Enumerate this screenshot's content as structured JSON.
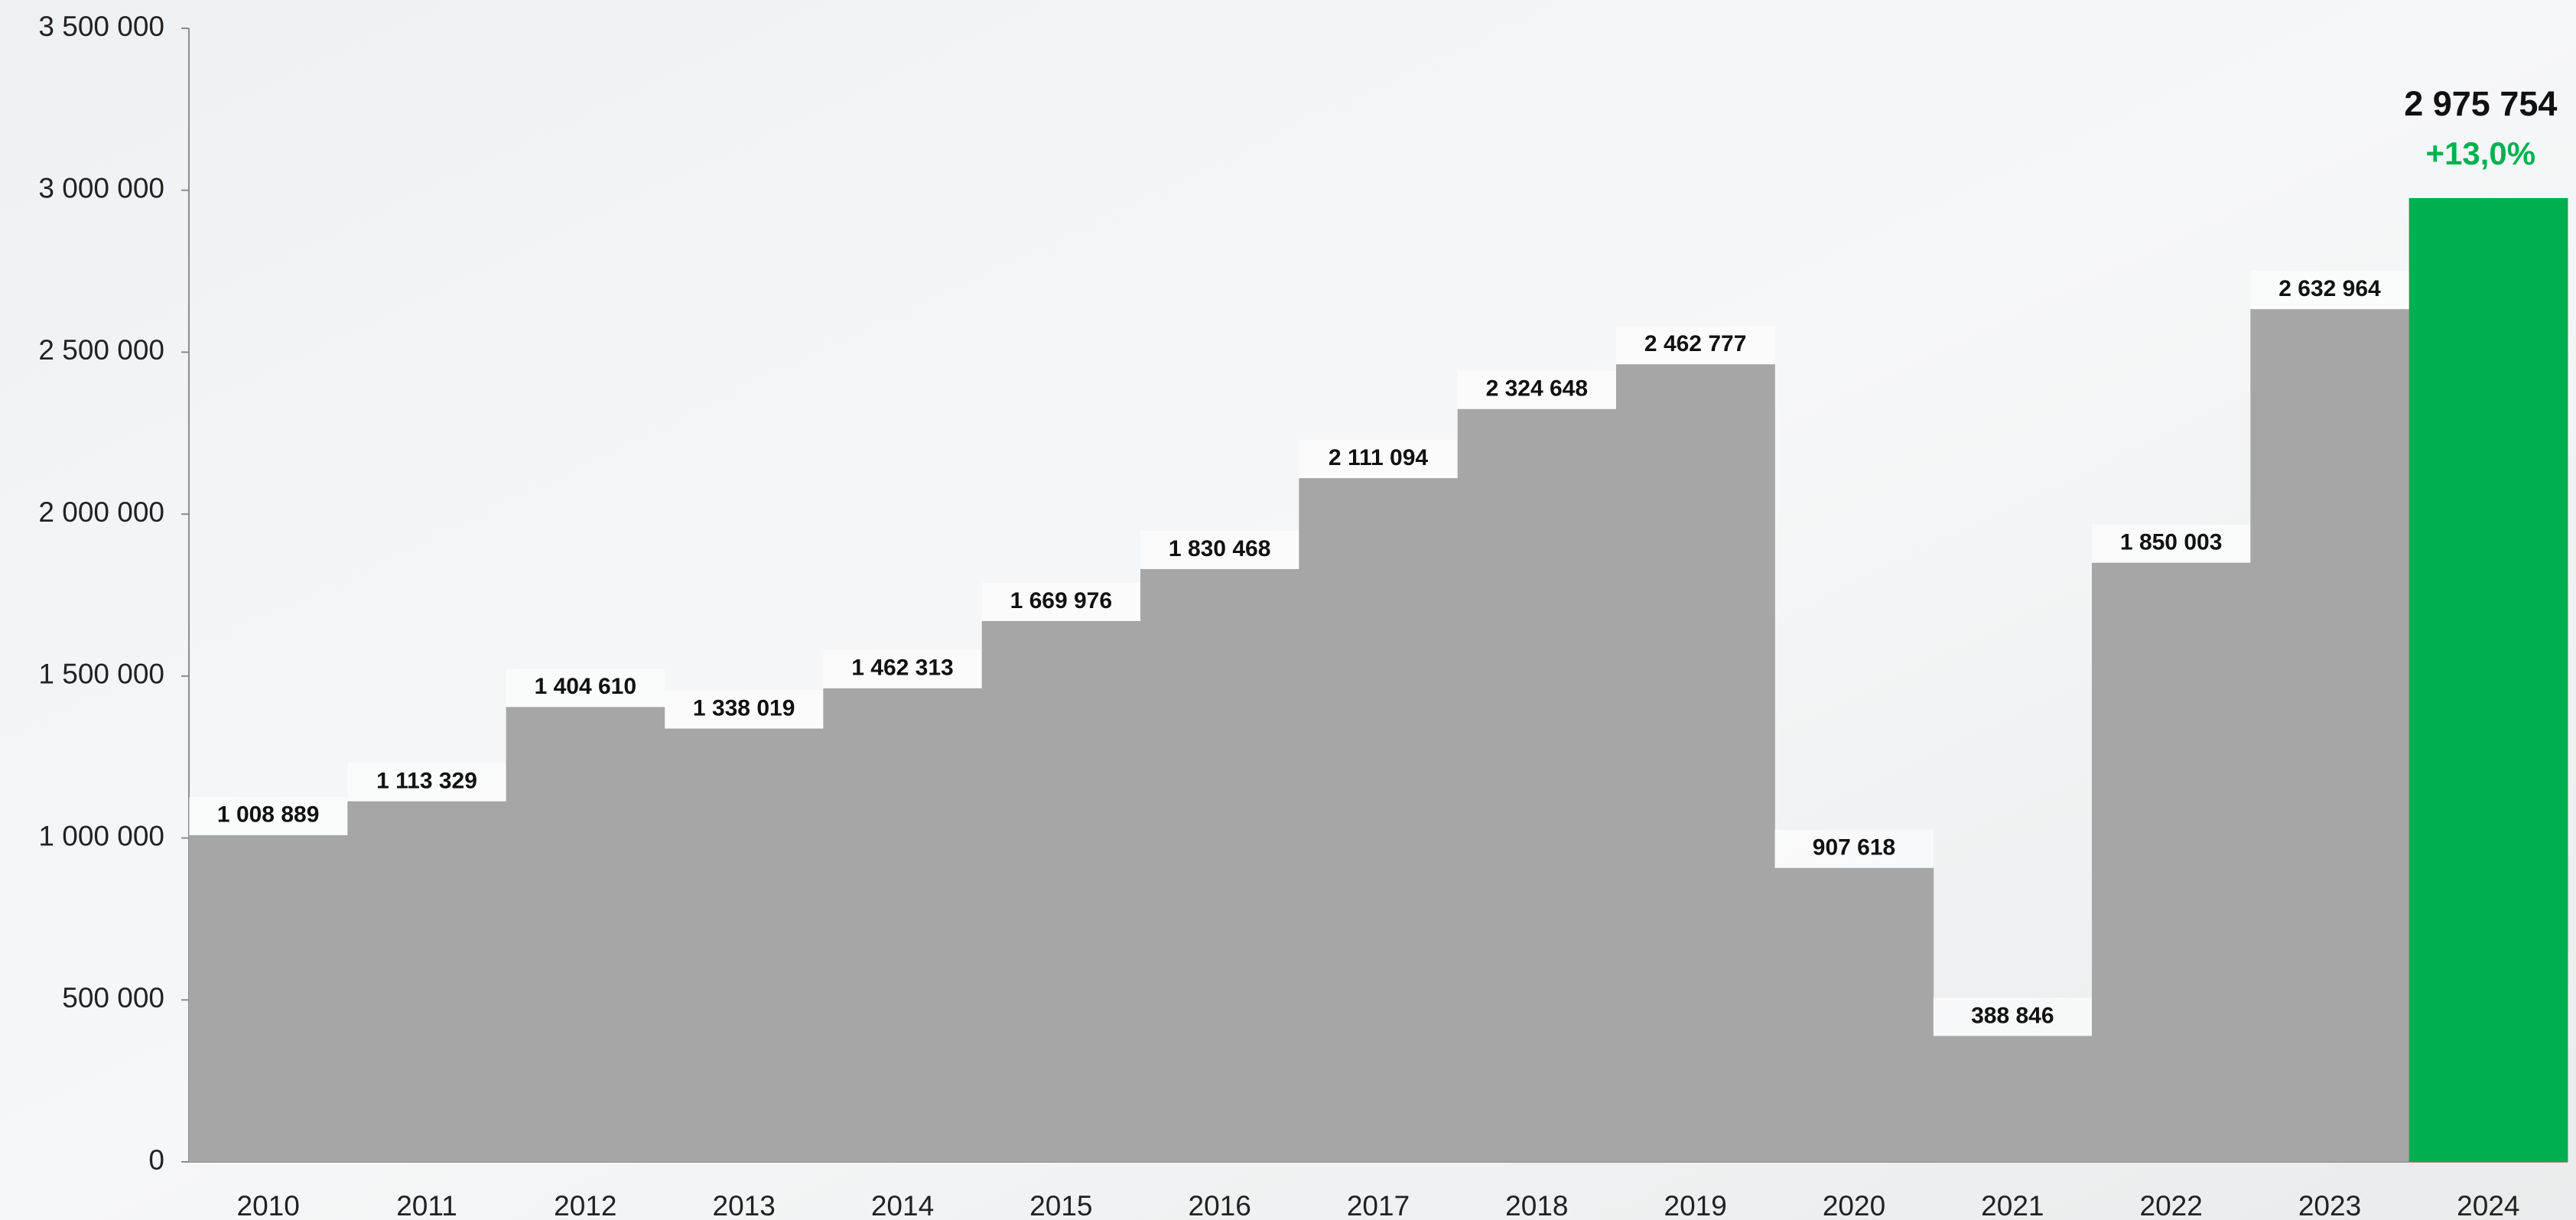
{
  "chart_data": {
    "type": "bar",
    "categories": [
      "2010",
      "2011",
      "2012",
      "2013",
      "2014",
      "2015",
      "2016",
      "2017",
      "2018",
      "2019",
      "2020",
      "2021",
      "2022",
      "2023",
      "2024"
    ],
    "values": [
      1008889,
      1113329,
      1404610,
      1338019,
      1462313,
      1669976,
      1830468,
      2111094,
      2324648,
      2462777,
      907618,
      388846,
      1850003,
      2632964,
      2975754
    ],
    "value_labels": [
      "1 008 889",
      "1 113 329",
      "1 404 610",
      "1 338 019",
      "1 462 313",
      "1 669 976",
      "1 830 468",
      "2 111 094",
      "2 324 648",
      "2 462 777",
      "907 618",
      "388 846",
      "1 850 003",
      "2 632 964",
      "2 975 754"
    ],
    "colors": [
      "#a6a6a6",
      "#a6a6a6",
      "#a6a6a6",
      "#a6a6a6",
      "#a6a6a6",
      "#a6a6a6",
      "#a6a6a6",
      "#a6a6a6",
      "#a6a6a6",
      "#a6a6a6",
      "#a6a6a6",
      "#a6a6a6",
      "#a6a6a6",
      "#a6a6a6",
      "#00b050"
    ],
    "annotation": {
      "text": "+13,0%",
      "color": "#00b050"
    },
    "ylim": [
      0,
      3500000
    ],
    "yticks": [
      0,
      {
        "value": 500000,
        "label": "500 000"
      },
      {
        "value": 1000000,
        "label": "1 000 000"
      },
      {
        "value": 1500000,
        "label": "1 500 000"
      },
      {
        "value": 2000000,
        "label": "2 000 000"
      },
      {
        "value": 2500000,
        "label": "2 500 000"
      },
      {
        "value": 3000000,
        "label": "3 000 000"
      },
      {
        "value": 3500000,
        "label": "3 500 000"
      }
    ],
    "grid": false
  }
}
